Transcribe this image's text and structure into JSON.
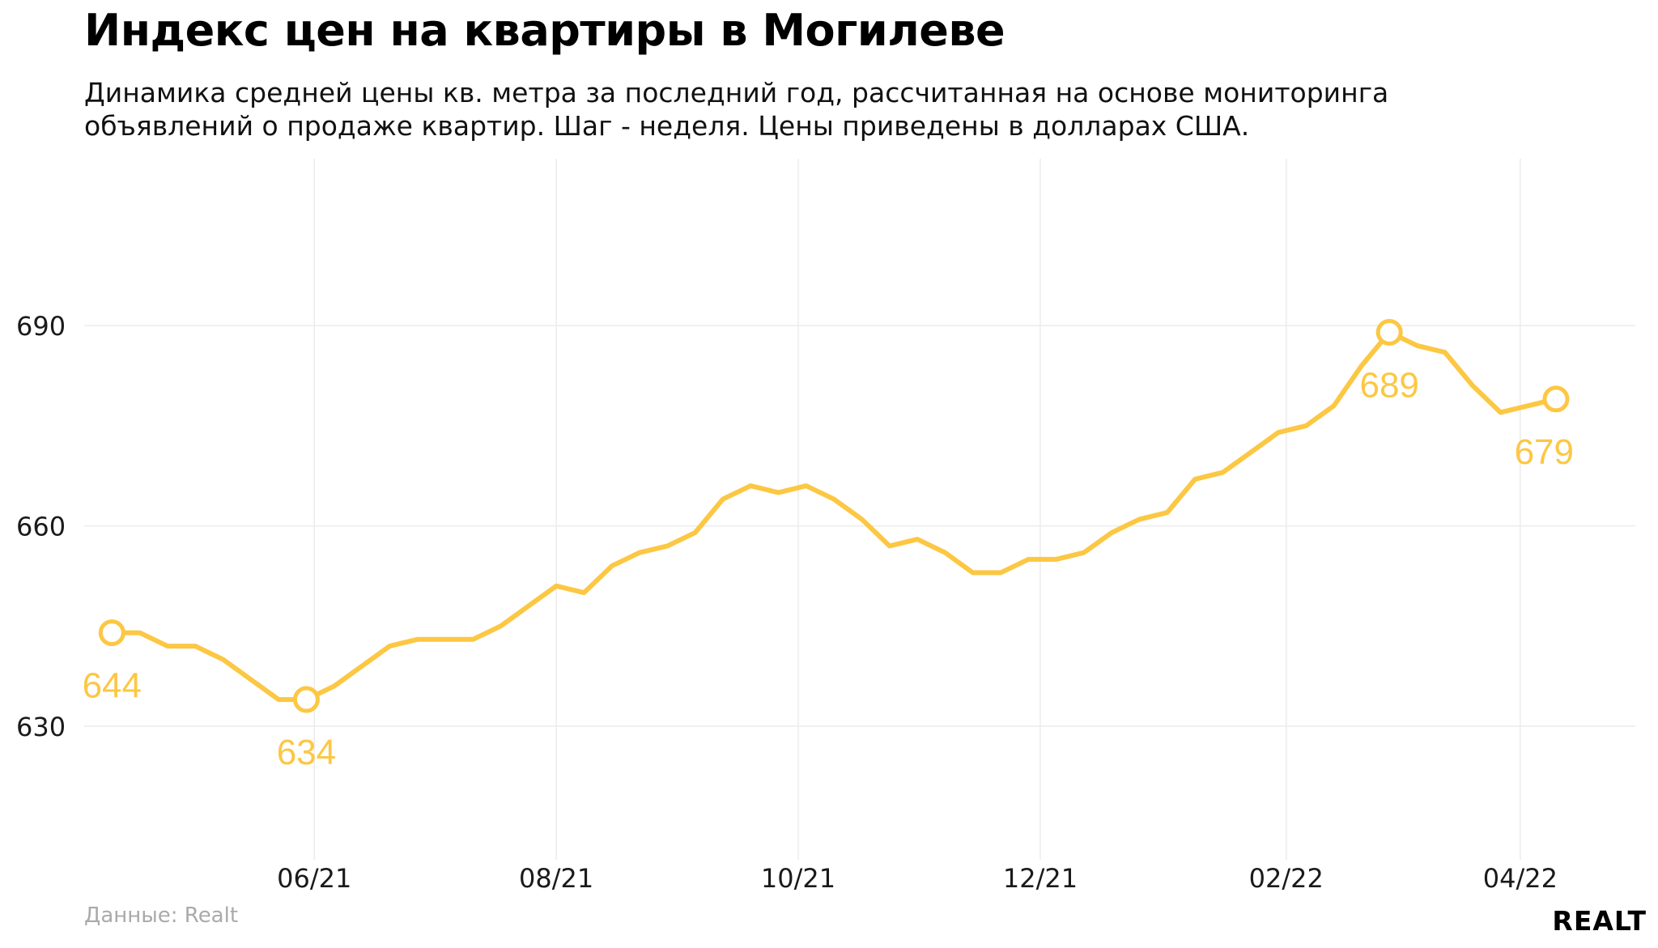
{
  "header": {
    "title": "Индекс цен на квартиры в Могилеве",
    "subtitle": "Динамика средней цены кв. метра за последний год, рассчитанная на основе мониторинга объявлений о продаже квартир. Шаг - неделя. Цены приведены в долларах США."
  },
  "footer": {
    "source": "Данные: Realt",
    "logo": "REALT"
  },
  "colors": {
    "line": "#fcc743",
    "grid": "#ececec",
    "axis_text": "#1a1a1a"
  },
  "chart_data": {
    "type": "line",
    "title": "Индекс цен на квартиры в Могилеве",
    "xlabel": "",
    "ylabel": "",
    "grid": true,
    "y_ticks": [
      630,
      660,
      690
    ],
    "ylim": [
      610,
      715
    ],
    "x_ticks": [
      {
        "label": "06/21",
        "date": "2021-06-01"
      },
      {
        "label": "08/21",
        "date": "2021-08-01"
      },
      {
        "label": "10/21",
        "date": "2021-10-01"
      },
      {
        "label": "12/21",
        "date": "2021-12-01"
      },
      {
        "label": "02/22",
        "date": "2022-02-01"
      },
      {
        "label": "04/22",
        "date": "2022-04-01"
      }
    ],
    "xlim": [
      "2021-04-04",
      "2022-04-30"
    ],
    "series": [
      {
        "points": [
          [
            "2021-04-11",
            644
          ],
          [
            "2021-04-18",
            644
          ],
          [
            "2021-04-25",
            642
          ],
          [
            "2021-05-02",
            642
          ],
          [
            "2021-05-09",
            640
          ],
          [
            "2021-05-16",
            637
          ],
          [
            "2021-05-23",
            634
          ],
          [
            "2021-05-30",
            634
          ],
          [
            "2021-06-06",
            636
          ],
          [
            "2021-06-13",
            639
          ],
          [
            "2021-06-20",
            642
          ],
          [
            "2021-06-27",
            643
          ],
          [
            "2021-07-04",
            643
          ],
          [
            "2021-07-11",
            643
          ],
          [
            "2021-07-18",
            645
          ],
          [
            "2021-07-25",
            648
          ],
          [
            "2021-08-01",
            651
          ],
          [
            "2021-08-08",
            650
          ],
          [
            "2021-08-15",
            654
          ],
          [
            "2021-08-22",
            656
          ],
          [
            "2021-08-29",
            657
          ],
          [
            "2021-09-05",
            659
          ],
          [
            "2021-09-12",
            664
          ],
          [
            "2021-09-19",
            666
          ],
          [
            "2021-09-26",
            665
          ],
          [
            "2021-10-03",
            666
          ],
          [
            "2021-10-10",
            664
          ],
          [
            "2021-10-17",
            661
          ],
          [
            "2021-10-24",
            657
          ],
          [
            "2021-10-31",
            658
          ],
          [
            "2021-11-07",
            656
          ],
          [
            "2021-11-14",
            653
          ],
          [
            "2021-11-21",
            653
          ],
          [
            "2021-11-28",
            655
          ],
          [
            "2021-12-05",
            655
          ],
          [
            "2021-12-12",
            656
          ],
          [
            "2021-12-19",
            659
          ],
          [
            "2021-12-26",
            661
          ],
          [
            "2022-01-02",
            662
          ],
          [
            "2022-01-09",
            667
          ],
          [
            "2022-01-16",
            668
          ],
          [
            "2022-01-23",
            671
          ],
          [
            "2022-01-30",
            674
          ],
          [
            "2022-02-06",
            675
          ],
          [
            "2022-02-13",
            678
          ],
          [
            "2022-02-20",
            684
          ],
          [
            "2022-02-27",
            689
          ],
          [
            "2022-03-06",
            687
          ],
          [
            "2022-03-13",
            686
          ],
          [
            "2022-03-20",
            681
          ],
          [
            "2022-03-27",
            677
          ],
          [
            "2022-04-03",
            678
          ],
          [
            "2022-04-10",
            679
          ]
        ]
      }
    ],
    "annotations": [
      {
        "date": "2021-04-11",
        "value": 644,
        "label": "644",
        "anchor": "middle"
      },
      {
        "date": "2021-05-30",
        "value": 634,
        "label": "634",
        "anchor": "middle"
      },
      {
        "date": "2022-02-27",
        "value": 689,
        "label": "689",
        "anchor": "middle"
      },
      {
        "date": "2022-04-10",
        "value": 679,
        "label": "679",
        "anchor": "end"
      }
    ]
  }
}
